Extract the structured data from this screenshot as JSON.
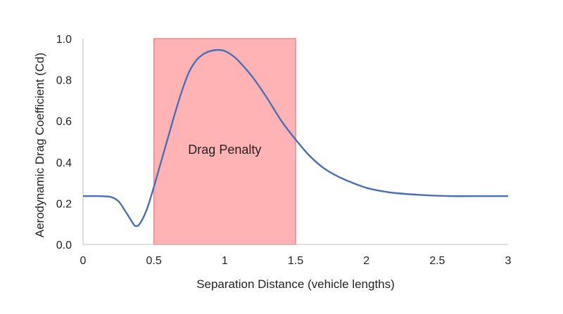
{
  "chart_data": {
    "type": "line",
    "xlabel": "Separation Distance (vehicle lengths)",
    "ylabel": "Aerodynamic Drag Coefficient (Cd)",
    "xlim": [
      0,
      3
    ],
    "ylim": [
      0,
      1.0
    ],
    "x_ticks": [
      "0",
      "0.5",
      "1",
      "1.5",
      "2",
      "2.5",
      "3"
    ],
    "y_ticks": [
      "0.0",
      "0.2",
      "0.4",
      "0.6",
      "0.8",
      "1.0"
    ],
    "grid": false,
    "legend": "none",
    "series": [
      {
        "color": "#4a6fb5",
        "x": [
          0,
          0.1,
          0.15,
          0.2,
          0.25,
          0.3,
          0.35,
          0.37,
          0.4,
          0.45,
          0.5,
          0.55,
          0.6,
          0.65,
          0.7,
          0.75,
          0.8,
          0.85,
          0.9,
          0.95,
          1.0,
          1.05,
          1.1,
          1.2,
          1.3,
          1.4,
          1.5,
          1.6,
          1.7,
          1.8,
          1.9,
          2.0,
          2.1,
          2.2,
          2.4,
          2.6,
          2.8,
          3.0
        ],
        "y": [
          0.235,
          0.235,
          0.234,
          0.23,
          0.21,
          0.16,
          0.105,
          0.09,
          0.1,
          0.17,
          0.28,
          0.4,
          0.52,
          0.64,
          0.75,
          0.84,
          0.895,
          0.925,
          0.94,
          0.945,
          0.94,
          0.92,
          0.89,
          0.81,
          0.71,
          0.6,
          0.51,
          0.43,
          0.37,
          0.33,
          0.3,
          0.275,
          0.26,
          0.25,
          0.24,
          0.235,
          0.235,
          0.235
        ]
      }
    ],
    "annotations": [
      {
        "text": "Drag Penalty",
        "x_start": 0.5,
        "x_end": 1.5,
        "color": "#ffb3b5",
        "edge_color": "#e8898d"
      }
    ]
  }
}
